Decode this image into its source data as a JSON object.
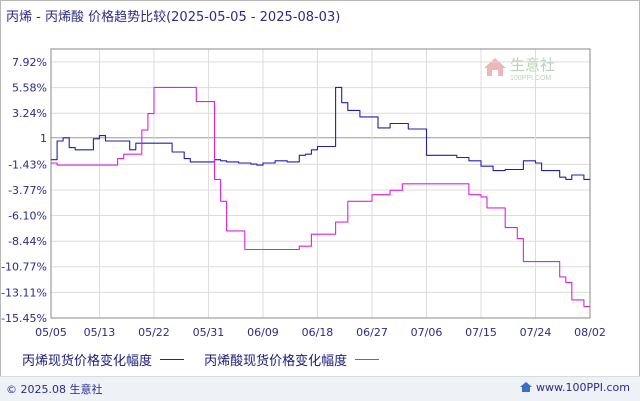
{
  "title": "丙烯 - 丙烯酸 价格趋势比较(2025-05-05 - 2025-08-03)",
  "watermark": {
    "brand": "生意社",
    "url": "100PPI.COM"
  },
  "legend": [
    {
      "label": "丙烯现货价格变化幅度",
      "color": "#1f1fb4"
    },
    {
      "label": "丙烯酸现货价格变化幅度",
      "color": "#e020e0"
    }
  ],
  "footer": {
    "copyright": "© 2025.08 生意社",
    "site": "www.100PPI.com"
  },
  "chart_data": {
    "type": "line",
    "title": "丙烯 - 丙烯酸 价格趋势比较(2025-05-05 - 2025-08-03)",
    "xlabel": "",
    "ylabel": "",
    "x_range": [
      0,
      89
    ],
    "ylim": [
      -15.45,
      9.1
    ],
    "y_ticks": [
      {
        "label": "7.92%",
        "value": 7.92
      },
      {
        "label": "5.58%",
        "value": 5.58
      },
      {
        "label": "3.24%",
        "value": 3.24
      },
      {
        "label": "1",
        "value": 1
      },
      {
        "label": "-1.43%",
        "value": -1.43
      },
      {
        "label": "-3.77%",
        "value": -3.77
      },
      {
        "label": "-6.10%",
        "value": -6.1
      },
      {
        "label": "-8.44%",
        "value": -8.44
      },
      {
        "label": "-10.77%",
        "value": -10.77
      },
      {
        "label": "-13.11%",
        "value": -13.11
      },
      {
        "label": "-15.45%",
        "value": -15.45
      }
    ],
    "x_ticks": [
      {
        "label": "05/05",
        "day": 0
      },
      {
        "label": "05/13",
        "day": 8
      },
      {
        "label": "05/22",
        "day": 17
      },
      {
        "label": "05/31",
        "day": 26
      },
      {
        "label": "06/09",
        "day": 35
      },
      {
        "label": "06/18",
        "day": 44
      },
      {
        "label": "06/27",
        "day": 53
      },
      {
        "label": "07/06",
        "day": 62
      },
      {
        "label": "07/15",
        "day": 71
      },
      {
        "label": "07/24",
        "day": 80
      },
      {
        "label": "08/02",
        "day": 89
      }
    ],
    "grid": true,
    "legend_position": "bottom-left",
    "series": [
      {
        "name": "丙烯现货价格变化幅度",
        "color": "#1f1fb4",
        "x": [
          0,
          1,
          2,
          3,
          4,
          5,
          6,
          7,
          8,
          9,
          10,
          11,
          12,
          13,
          14,
          15,
          16,
          17,
          18,
          19,
          20,
          21,
          22,
          23,
          24,
          25,
          26,
          27,
          28,
          29,
          30,
          31,
          32,
          33,
          34,
          35,
          36,
          37,
          38,
          39,
          40,
          41,
          42,
          43,
          44,
          45,
          46,
          47,
          48,
          49,
          50,
          51,
          52,
          53,
          54,
          55,
          56,
          57,
          58,
          59,
          60,
          61,
          62,
          63,
          64,
          65,
          66,
          67,
          68,
          69,
          70,
          71,
          72,
          73,
          74,
          75,
          76,
          77,
          78,
          79,
          80,
          81,
          82,
          83,
          84,
          85,
          86,
          87,
          88,
          89
        ],
        "y": [
          -1.0,
          0.7,
          1.0,
          0.1,
          -0.1,
          -0.1,
          -0.1,
          0.9,
          1.2,
          0.7,
          0.7,
          0.7,
          0.7,
          -0.1,
          0.5,
          0.5,
          0.5,
          0.5,
          0.5,
          0.5,
          -0.3,
          -0.3,
          -0.9,
          -1.2,
          -1.2,
          -1.2,
          -1.2,
          -1.0,
          -1.1,
          -1.2,
          -1.2,
          -1.3,
          -1.3,
          -1.4,
          -1.5,
          -1.3,
          -1.3,
          -1.1,
          -1.1,
          -1.2,
          -1.2,
          -0.6,
          -0.5,
          -0.1,
          0.2,
          0.2,
          0.2,
          5.6,
          4.2,
          3.5,
          3.5,
          2.9,
          2.9,
          2.9,
          1.9,
          1.9,
          2.3,
          2.3,
          2.3,
          1.8,
          1.8,
          1.8,
          -0.6,
          -0.6,
          -0.6,
          -0.6,
          -0.6,
          -0.8,
          -0.8,
          -1.1,
          -1.1,
          -1.6,
          -1.6,
          -2.0,
          -2.0,
          -1.9,
          -1.9,
          -1.9,
          -1.1,
          -1.1,
          -1.3,
          -2.0,
          -2.0,
          -2.0,
          -2.6,
          -2.8,
          -2.4,
          -2.4,
          -2.8,
          -2.8
        ]
      },
      {
        "name": "丙烯酸现货价格变化幅度",
        "color": "#e020e0",
        "x": [
          0,
          1,
          2,
          3,
          4,
          5,
          6,
          7,
          8,
          9,
          10,
          11,
          12,
          13,
          14,
          15,
          16,
          17,
          18,
          19,
          20,
          21,
          22,
          23,
          24,
          25,
          26,
          27,
          28,
          29,
          30,
          31,
          32,
          33,
          34,
          35,
          36,
          37,
          38,
          39,
          40,
          41,
          42,
          43,
          44,
          45,
          46,
          47,
          48,
          49,
          50,
          51,
          52,
          53,
          54,
          55,
          56,
          57,
          58,
          59,
          60,
          61,
          62,
          63,
          64,
          65,
          66,
          67,
          68,
          69,
          70,
          71,
          72,
          73,
          74,
          75,
          76,
          77,
          78,
          79,
          80,
          81,
          82,
          83,
          84,
          85,
          86,
          87,
          88,
          89
        ],
        "y": [
          -1.3,
          -1.5,
          -1.5,
          -1.5,
          -1.5,
          -1.5,
          -1.5,
          -1.5,
          -1.5,
          -1.5,
          -1.5,
          -0.9,
          -0.5,
          -0.5,
          -0.5,
          1.7,
          3.2,
          5.6,
          5.6,
          5.6,
          5.6,
          5.6,
          5.6,
          5.6,
          4.3,
          4.3,
          4.3,
          -2.8,
          -4.8,
          -7.5,
          -7.5,
          -7.5,
          -9.2,
          -9.2,
          -9.2,
          -9.2,
          -9.2,
          -9.2,
          -9.2,
          -9.2,
          -9.2,
          -8.9,
          -8.9,
          -7.8,
          -7.8,
          -7.8,
          -7.8,
          -6.7,
          -6.7,
          -4.8,
          -4.8,
          -4.8,
          -4.8,
          -4.2,
          -4.2,
          -4.2,
          -3.8,
          -3.8,
          -3.2,
          -3.2,
          -3.2,
          -3.2,
          -3.2,
          -3.2,
          -3.2,
          -3.2,
          -3.2,
          -3.2,
          -3.2,
          -4.2,
          -4.2,
          -4.4,
          -5.4,
          -5.4,
          -5.4,
          -7.2,
          -7.2,
          -8.2,
          -10.3,
          -10.3,
          -10.3,
          -10.3,
          -10.3,
          -10.3,
          -11.7,
          -12.2,
          -13.8,
          -13.8,
          -14.4,
          -14.4
        ]
      }
    ]
  }
}
